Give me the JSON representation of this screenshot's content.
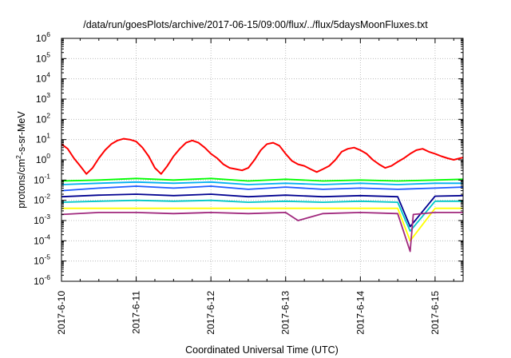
{
  "chart_data": {
    "type": "line",
    "title": "/data/run/goesPlots/archive/2017-06-15/09:00/flux/../flux/5daysMoonFluxes.txt",
    "xlabel": "Coordinated Universal Time (UTC)",
    "ylabel": {
      "main": "protons/cm",
      "sup": "2",
      "rest": "-s-sr-MeV"
    },
    "y_scale": "log",
    "ylim": [
      1e-06,
      1000000.0
    ],
    "xlim": [
      "2017-06-10T00:00",
      "2017-06-15T09:00"
    ],
    "grid": true,
    "legend": "none",
    "y_ticks": [
      {
        "base": "10",
        "exp": "-6",
        "value": 1e-06
      },
      {
        "base": "10",
        "exp": "-5",
        "value": 1e-05
      },
      {
        "base": "10",
        "exp": "-4",
        "value": 0.0001
      },
      {
        "base": "10",
        "exp": "-3",
        "value": 0.001
      },
      {
        "base": "10",
        "exp": "-2",
        "value": 0.01
      },
      {
        "base": "10",
        "exp": "-1",
        "value": 0.1
      },
      {
        "base": "10",
        "exp": "0",
        "value": 1
      },
      {
        "base": "10",
        "exp": "1",
        "value": 10
      },
      {
        "base": "10",
        "exp": "2",
        "value": 100
      },
      {
        "base": "10",
        "exp": "3",
        "value": 1000
      },
      {
        "base": "10",
        "exp": "4",
        "value": 10000
      },
      {
        "base": "10",
        "exp": "5",
        "value": 100000
      },
      {
        "base": "10",
        "exp": "6",
        "value": 1000000
      }
    ],
    "x_ticks": [
      {
        "label": "2017-6-10",
        "value": "2017-06-10T00:00"
      },
      {
        "label": "2017-6-11",
        "value": "2017-06-11T00:00"
      },
      {
        "label": "2017-6-12",
        "value": "2017-06-12T00:00"
      },
      {
        "label": "2017-6-13",
        "value": "2017-06-13T00:00"
      },
      {
        "label": "2017-6-14",
        "value": "2017-06-14T00:00"
      },
      {
        "label": "2017-6-15",
        "value": "2017-06-15T00:00"
      }
    ],
    "series": [
      {
        "color": "#ff0000",
        "x": [
          "2017-06-10T00:00",
          "2017-06-10T02:00",
          "2017-06-10T04:00",
          "2017-06-10T06:00",
          "2017-06-10T08:00",
          "2017-06-10T10:00",
          "2017-06-10T12:00",
          "2017-06-10T14:00",
          "2017-06-10T16:00",
          "2017-06-10T18:00",
          "2017-06-10T20:00",
          "2017-06-10T22:00",
          "2017-06-11T00:00",
          "2017-06-11T02:00",
          "2017-06-11T04:00",
          "2017-06-11T06:00",
          "2017-06-11T08:00",
          "2017-06-11T10:00",
          "2017-06-11T12:00",
          "2017-06-11T14:00",
          "2017-06-11T16:00",
          "2017-06-11T18:00",
          "2017-06-11T20:00",
          "2017-06-11T22:00",
          "2017-06-12T00:00",
          "2017-06-12T02:00",
          "2017-06-12T04:00",
          "2017-06-12T06:00",
          "2017-06-12T08:00",
          "2017-06-12T10:00",
          "2017-06-12T12:00",
          "2017-06-12T14:00",
          "2017-06-12T16:00",
          "2017-06-12T18:00",
          "2017-06-12T20:00",
          "2017-06-12T22:00",
          "2017-06-13T00:00",
          "2017-06-13T02:00",
          "2017-06-13T04:00",
          "2017-06-13T06:00",
          "2017-06-13T08:00",
          "2017-06-13T10:00",
          "2017-06-13T12:00",
          "2017-06-13T14:00",
          "2017-06-13T16:00",
          "2017-06-13T18:00",
          "2017-06-13T20:00",
          "2017-06-13T22:00",
          "2017-06-14T00:00",
          "2017-06-14T02:00",
          "2017-06-14T04:00",
          "2017-06-14T06:00",
          "2017-06-14T08:00",
          "2017-06-14T10:00",
          "2017-06-14T12:00",
          "2017-06-14T14:00",
          "2017-06-14T16:00",
          "2017-06-14T18:00",
          "2017-06-14T20:00",
          "2017-06-14T22:00",
          "2017-06-15T00:00",
          "2017-06-15T02:00",
          "2017-06-15T04:00",
          "2017-06-15T06:00",
          "2017-06-15T08:00",
          "2017-06-15T09:00"
        ],
        "values": [
          6,
          3.5,
          1.2,
          0.5,
          0.2,
          0.4,
          1.2,
          3,
          6,
          9,
          11,
          10,
          8,
          4,
          1.5,
          0.4,
          0.2,
          0.5,
          1.5,
          3.5,
          7,
          9,
          7,
          4,
          2,
          1.2,
          0.6,
          0.4,
          0.35,
          0.3,
          0.4,
          1,
          3,
          6,
          7,
          5,
          2,
          0.9,
          0.6,
          0.5,
          0.35,
          0.25,
          0.35,
          0.5,
          1,
          2.5,
          3.5,
          4,
          3,
          2,
          1,
          0.6,
          0.4,
          0.5,
          0.8,
          1.2,
          2,
          3,
          3.5,
          2.5,
          2,
          1.5,
          1.2,
          1,
          1.2,
          1.3
        ]
      },
      {
        "color": "#00ff00",
        "x": [
          "2017-06-10T00:00",
          "2017-06-10T12:00",
          "2017-06-11T00:00",
          "2017-06-11T12:00",
          "2017-06-12T00:00",
          "2017-06-12T12:00",
          "2017-06-13T00:00",
          "2017-06-13T12:00",
          "2017-06-14T00:00",
          "2017-06-14T12:00",
          "2017-06-15T00:00",
          "2017-06-15T09:00"
        ],
        "values": [
          0.09,
          0.1,
          0.12,
          0.1,
          0.12,
          0.09,
          0.11,
          0.09,
          0.1,
          0.09,
          0.1,
          0.11
        ]
      },
      {
        "color": "#00b0f0",
        "x": [
          "2017-06-10T00:00",
          "2017-06-10T12:00",
          "2017-06-11T00:00",
          "2017-06-11T12:00",
          "2017-06-12T00:00",
          "2017-06-12T12:00",
          "2017-06-13T00:00",
          "2017-06-13T12:00",
          "2017-06-14T00:00",
          "2017-06-14T12:00",
          "2017-06-15T00:00",
          "2017-06-15T09:00"
        ],
        "values": [
          0.06,
          0.07,
          0.08,
          0.07,
          0.08,
          0.06,
          0.07,
          0.06,
          0.07,
          0.06,
          0.07,
          0.07
        ]
      },
      {
        "color": "#1e5aff",
        "x": [
          "2017-06-10T00:00",
          "2017-06-10T12:00",
          "2017-06-11T00:00",
          "2017-06-11T12:00",
          "2017-06-12T00:00",
          "2017-06-12T12:00",
          "2017-06-13T00:00",
          "2017-06-13T12:00",
          "2017-06-14T00:00",
          "2017-06-14T12:00",
          "2017-06-15T00:00",
          "2017-06-15T09:00"
        ],
        "values": [
          0.03,
          0.04,
          0.05,
          0.04,
          0.05,
          0.035,
          0.045,
          0.035,
          0.04,
          0.035,
          0.04,
          0.045
        ]
      },
      {
        "color": "#000090",
        "x": [
          "2017-06-10T00:00",
          "2017-06-10T12:00",
          "2017-06-11T00:00",
          "2017-06-11T12:00",
          "2017-06-12T00:00",
          "2017-06-12T12:00",
          "2017-06-13T00:00",
          "2017-06-13T12:00",
          "2017-06-14T00:00",
          "2017-06-14T12:00",
          "2017-06-14T16:00",
          "2017-06-15T00:00",
          "2017-06-15T09:00"
        ],
        "values": [
          0.015,
          0.018,
          0.02,
          0.017,
          0.02,
          0.015,
          0.018,
          0.015,
          0.017,
          0.015,
          0.0005,
          0.016,
          0.017
        ]
      },
      {
        "color": "#00c8c8",
        "x": [
          "2017-06-10T00:00",
          "2017-06-10T12:00",
          "2017-06-11T00:00",
          "2017-06-11T12:00",
          "2017-06-12T00:00",
          "2017-06-12T12:00",
          "2017-06-13T00:00",
          "2017-06-13T12:00",
          "2017-06-14T00:00",
          "2017-06-14T12:00",
          "2017-06-14T16:00",
          "2017-06-15T00:00",
          "2017-06-15T09:00"
        ],
        "values": [
          0.008,
          0.009,
          0.01,
          0.009,
          0.01,
          0.008,
          0.009,
          0.008,
          0.009,
          0.008,
          0.0003,
          0.009,
          0.009
        ]
      },
      {
        "color": "#ffff00",
        "x": [
          "2017-06-10T00:00",
          "2017-06-10T12:00",
          "2017-06-11T00:00",
          "2017-06-11T12:00",
          "2017-06-12T00:00",
          "2017-06-12T12:00",
          "2017-06-13T00:00",
          "2017-06-13T12:00",
          "2017-06-14T00:00",
          "2017-06-14T12:00",
          "2017-06-14T16:00",
          "2017-06-15T00:00",
          "2017-06-15T09:00"
        ],
        "values": [
          0.004,
          0.004,
          0.004,
          0.004,
          0.004,
          0.004,
          0.004,
          0.004,
          0.004,
          0.004,
          0.0001,
          0.004,
          0.004
        ]
      },
      {
        "color": "#a0287d",
        "x": [
          "2017-06-10T00:00",
          "2017-06-10T12:00",
          "2017-06-11T00:00",
          "2017-06-11T12:00",
          "2017-06-12T00:00",
          "2017-06-12T12:00",
          "2017-06-13T00:00",
          "2017-06-13T04:00",
          "2017-06-13T12:00",
          "2017-06-14T00:00",
          "2017-06-14T12:00",
          "2017-06-14T16:00",
          "2017-06-14T17:00",
          "2017-06-15T00:00",
          "2017-06-15T09:00"
        ],
        "values": [
          0.002,
          0.0025,
          0.0025,
          0.0022,
          0.0025,
          0.0022,
          0.0025,
          0.001,
          0.0022,
          0.0025,
          0.0022,
          3e-05,
          0.002,
          0.0025,
          0.0025
        ]
      }
    ]
  }
}
